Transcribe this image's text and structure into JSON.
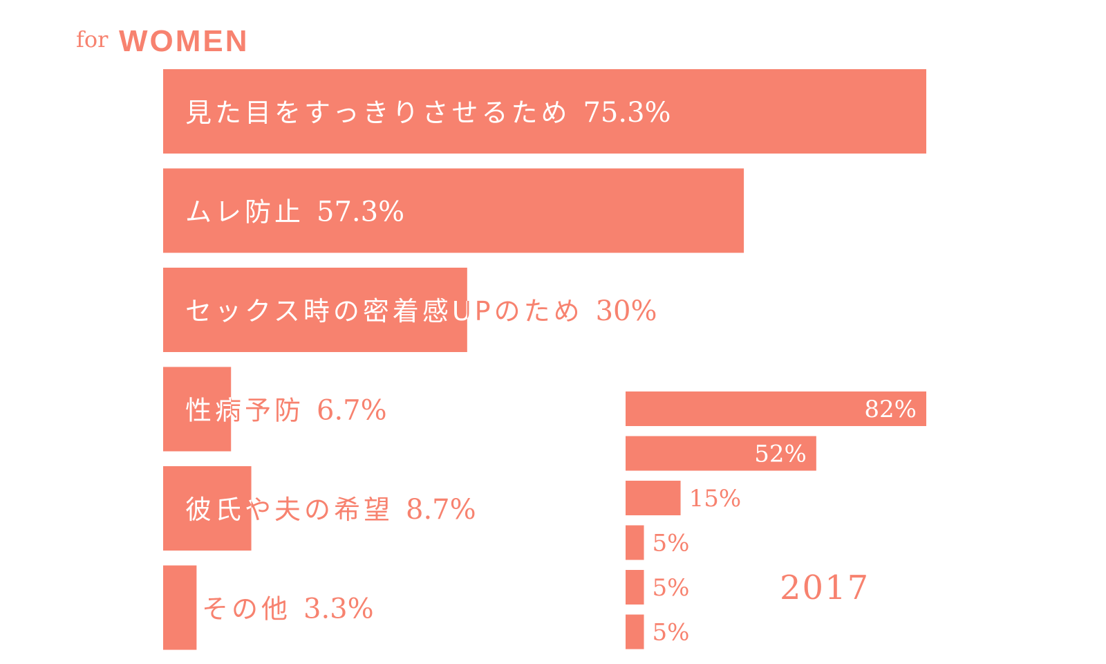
{
  "title": {
    "prefix": "for",
    "main": "WOMEN"
  },
  "colors": {
    "accent": "#F7826F",
    "on_bar": "#FFFFFF"
  },
  "chart_data": [
    {
      "type": "bar",
      "orientation": "horizontal",
      "title": "for WOMEN",
      "unit": "%",
      "xlim": [
        0,
        75.3
      ],
      "categories": [
        "見た目をすっきりさせるため",
        "ムレ防止",
        "セックス時の密着感UPのため",
        "性病予防",
        "彼氏や夫の希望",
        "その他"
      ],
      "values": [
        75.3,
        57.3,
        30,
        6.7,
        8.7,
        3.3
      ],
      "value_labels": [
        "75.3%",
        "57.3%",
        "30%",
        "6.7%",
        "8.7%",
        "3.3%"
      ]
    },
    {
      "type": "bar",
      "orientation": "horizontal",
      "title": "2017",
      "unit": "%",
      "xlim": [
        0,
        82
      ],
      "values": [
        82,
        52,
        15,
        5,
        5,
        5
      ],
      "value_labels": [
        "82%",
        "52%",
        "15%",
        "5%",
        "5%",
        "5%"
      ]
    }
  ]
}
